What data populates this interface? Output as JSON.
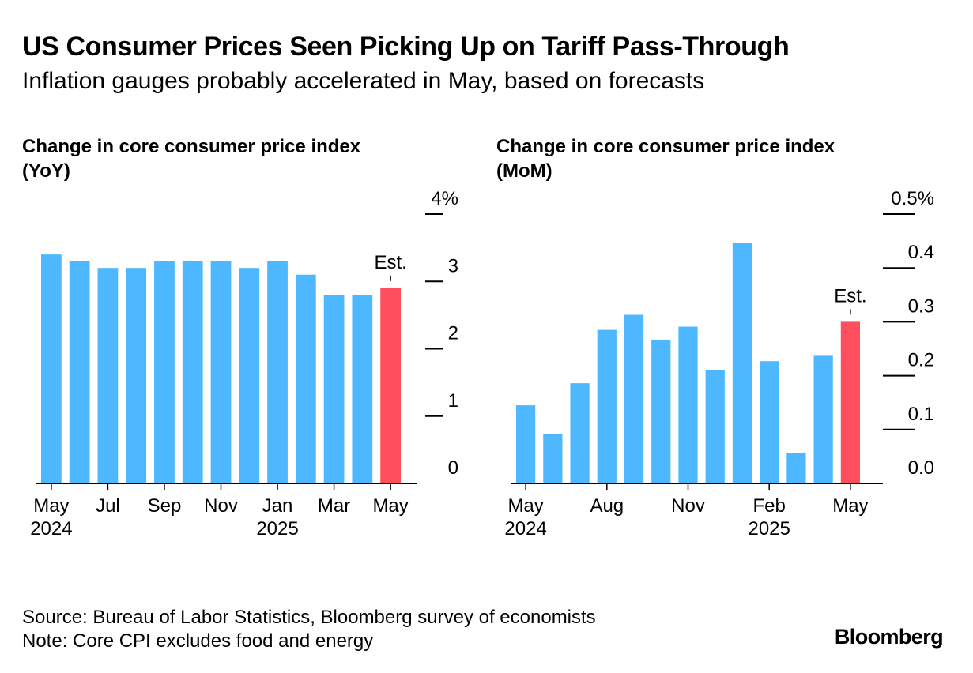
{
  "header": {
    "title": "US Consumer Prices Seen Picking Up on Tariff Pass-Through",
    "subtitle": "Inflation gauges probably accelerated in May, based on forecasts"
  },
  "footer": {
    "source": "Source: Bureau of Labor Statistics, Bloomberg survey of economists",
    "note": "Note: Core CPI excludes food and energy",
    "brand": "Bloomberg"
  },
  "colors": {
    "bar": "#4db8ff",
    "estimate": "#ff4f5e",
    "axis": "#000000"
  },
  "chart_data": [
    {
      "type": "bar",
      "title_line1": "Change in core consumer price index",
      "title_line2": "(YoY)",
      "categories": [
        "May 2024",
        "Jun 2024",
        "Jul 2024",
        "Aug 2024",
        "Sep 2024",
        "Oct 2024",
        "Nov 2024",
        "Dec 2024",
        "Jan 2025",
        "Feb 2025",
        "Mar 2025",
        "Apr 2025",
        "May 2025"
      ],
      "values": [
        3.4,
        3.3,
        3.2,
        3.2,
        3.3,
        3.3,
        3.3,
        3.2,
        3.3,
        3.1,
        2.8,
        2.8,
        2.9
      ],
      "estimate_index": 12,
      "estimate_label": "Est.",
      "yticks": [
        0,
        1,
        2,
        3,
        4
      ],
      "ytick_labels": [
        "0",
        "1",
        "2",
        "3",
        "4%"
      ],
      "ylim": [
        0,
        4
      ],
      "xticks": [
        {
          "index": 0,
          "line1": "May",
          "line2": "2024"
        },
        {
          "index": 2,
          "line1": "Jul",
          "line2": ""
        },
        {
          "index": 4,
          "line1": "Sep",
          "line2": ""
        },
        {
          "index": 6,
          "line1": "Nov",
          "line2": ""
        },
        {
          "index": 8,
          "line1": "Jan",
          "line2": "2025"
        },
        {
          "index": 10,
          "line1": "Mar",
          "line2": ""
        },
        {
          "index": 12,
          "line1": "May",
          "line2": ""
        }
      ],
      "xlabel": "",
      "ylabel": ""
    },
    {
      "type": "bar",
      "title_line1": "Change in core consumer price index",
      "title_line2": "(MoM)",
      "categories": [
        "May 2024",
        "Jun 2024",
        "Jul 2024",
        "Aug 2024",
        "Sep 2024",
        "Oct 2024",
        "Nov 2024",
        "Dec 2024",
        "Jan 2025",
        "Feb 2025",
        "Mar 2025",
        "Apr 2025",
        "May 2025"
      ],
      "values": [
        0.145,
        0.092,
        0.186,
        0.285,
        0.313,
        0.267,
        0.291,
        0.211,
        0.446,
        0.227,
        0.057,
        0.237,
        0.3
      ],
      "estimate_index": 12,
      "estimate_label": "Est.",
      "yticks": [
        0.0,
        0.1,
        0.2,
        0.3,
        0.4,
        0.5
      ],
      "ytick_labels": [
        "0.0",
        "0.1",
        "0.2",
        "0.3",
        "0.4",
        "0.5%"
      ],
      "ylim": [
        0,
        0.5
      ],
      "xticks": [
        {
          "index": 0,
          "line1": "May",
          "line2": "2024"
        },
        {
          "index": 3,
          "line1": "Aug",
          "line2": ""
        },
        {
          "index": 6,
          "line1": "Nov",
          "line2": ""
        },
        {
          "index": 9,
          "line1": "Feb",
          "line2": "2025"
        },
        {
          "index": 12,
          "line1": "May",
          "line2": ""
        }
      ],
      "xlabel": "",
      "ylabel": ""
    }
  ]
}
